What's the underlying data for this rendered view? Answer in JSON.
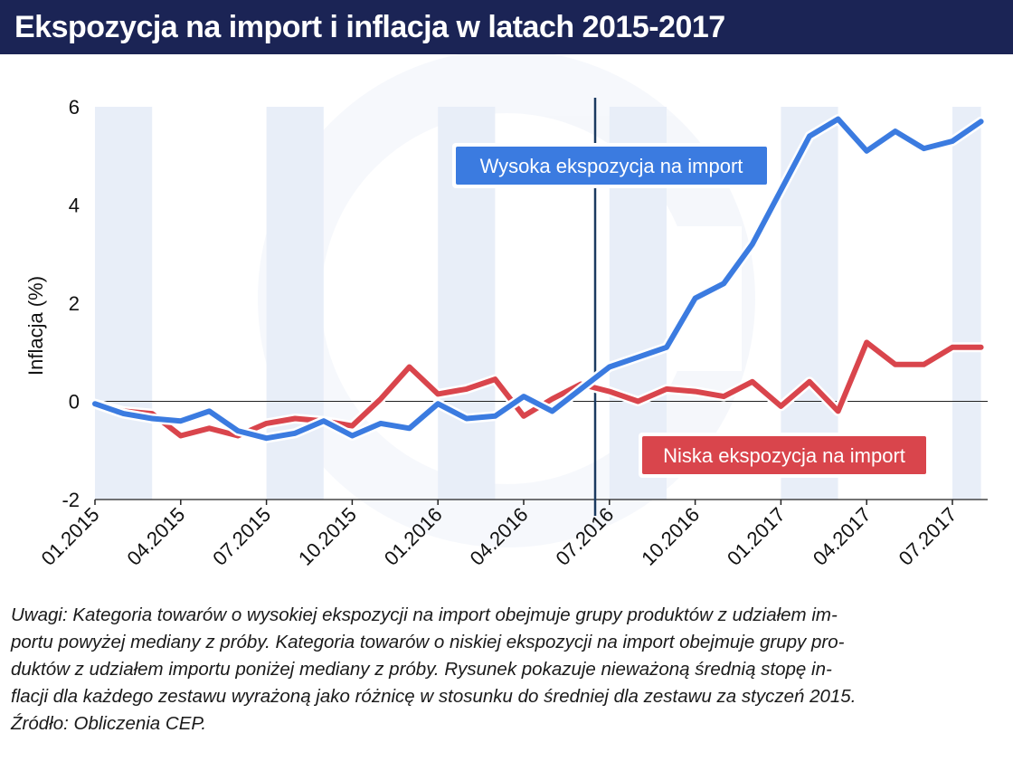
{
  "title": "Ekspozycja na import i inflacja w latach 2015-2017",
  "notes": {
    "lines": [
      "Uwagi: Kategoria towarów o wysokiej ekspozycji na import obejmuje grupy produktów z udziałem im-",
      "portu powyżej mediany z próby. Kategoria towarów o niskiej ekspozycji na import obejmuje grupy pro-",
      "duktów z udziałem importu poniżej mediany z próby. Rysunek pokazuje nieważoną średnią stopę in-",
      "flacji dla każdego zestawu wyrażoną jako różnicę w stosunku do średniej dla zestawu za styczeń 2015.",
      "Źródło: Obliczenia CEP."
    ]
  },
  "colors": {
    "header_bg": "#1b2455",
    "high_series": "#3b7be0",
    "low_series": "#d9454c",
    "band": "#e8eef8",
    "vline": "#1b3a60"
  },
  "chart_data": {
    "type": "line",
    "ylabel": "Inflacja (%)",
    "xlabel": "",
    "ylim": [
      -2,
      6
    ],
    "yticks": [
      "-2",
      "0",
      "2",
      "4",
      "6"
    ],
    "xticks": [
      "01.2015",
      "04.2015",
      "07.2015",
      "10.2015",
      "01.2016",
      "04.2016",
      "07.2016",
      "10.2016",
      "01.2017",
      "04.2017",
      "07.2017"
    ],
    "x": [
      "01.2015",
      "02.2015",
      "03.2015",
      "04.2015",
      "05.2015",
      "06.2015",
      "07.2015",
      "08.2015",
      "09.2015",
      "10.2015",
      "11.2015",
      "12.2015",
      "01.2016",
      "02.2016",
      "03.2016",
      "04.2016",
      "05.2016",
      "06.2016",
      "07.2016",
      "08.2016",
      "09.2016",
      "10.2016",
      "11.2016",
      "12.2016",
      "01.2017",
      "02.2017",
      "03.2017",
      "04.2017",
      "05.2017",
      "06.2017",
      "07.2017",
      "08.2017"
    ],
    "series": [
      {
        "name": "Wysoka ekspozycja na import",
        "values": [
          -0.05,
          -0.25,
          -0.35,
          -0.4,
          -0.2,
          -0.6,
          -0.75,
          -0.65,
          -0.4,
          -0.7,
          -0.45,
          -0.55,
          -0.05,
          -0.35,
          -0.3,
          0.1,
          -0.2,
          0.25,
          0.7,
          0.9,
          1.1,
          2.1,
          2.4,
          3.2,
          4.3,
          5.4,
          5.75,
          5.1,
          5.5,
          5.15,
          5.3,
          5.7
        ]
      },
      {
        "name": "Niska ekspozycja na import",
        "values": [
          -0.05,
          -0.2,
          -0.25,
          -0.7,
          -0.55,
          -0.7,
          -0.45,
          -0.35,
          -0.4,
          -0.5,
          0.05,
          0.7,
          0.15,
          0.25,
          0.45,
          -0.3,
          0.05,
          0.35,
          0.2,
          0.0,
          0.25,
          0.2,
          0.1,
          0.4,
          -0.1,
          0.4,
          -0.2,
          1.2,
          0.75,
          0.75,
          1.1,
          1.1
        ]
      }
    ],
    "vertical_marker": "06.2016",
    "shaded_bands": [
      [
        "01.2015",
        "03.2015"
      ],
      [
        "07.2015",
        "09.2015"
      ],
      [
        "01.2016",
        "03.2016"
      ],
      [
        "07.2016",
        "09.2016"
      ],
      [
        "01.2017",
        "03.2017"
      ],
      [
        "07.2017",
        "08.2017"
      ]
    ],
    "grid": false,
    "legend": "inline labels"
  }
}
